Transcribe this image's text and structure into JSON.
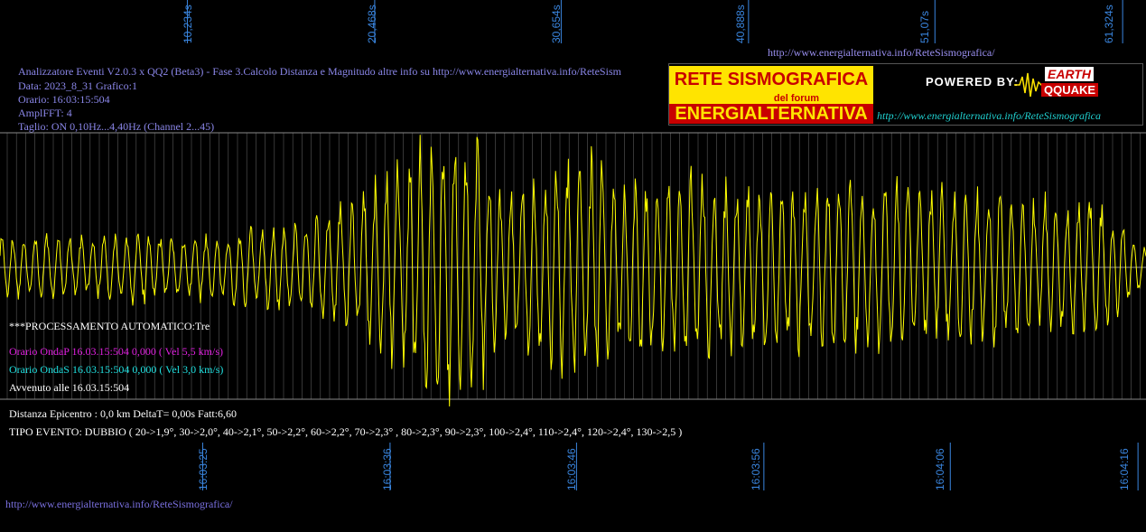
{
  "header": {
    "line1": "Analizzatore Eventi V2.0.3 x QQ2 (Beta3) - Fase 3.Calcolo Distanza e Magnitudo altre info su http://www.energialternativa.info/ReteSism",
    "line2": "Data: 2023_8_31 Grafico:1",
    "line3": "Orario: 16:03:15:504",
    "line4": "AmplFFT: 4",
    "line5": "Taglio: ON 0,10Hz...4,40Hz       (Channel 2...45)"
  },
  "url_top": "http://www.energialternativa.info/ReteSismografica/",
  "url_bottom": "http://www.energialternativa.info/ReteSismografica/",
  "logo": {
    "line1": "RETE SISMOGRAFICA",
    "line2": "del forum",
    "line3": "ENERGIALTERNATIVA",
    "powered": "POWERED BY:",
    "brand1": "EARTH",
    "brand2": "QQUAKE",
    "url": "http://www.energialternativa.info/ReteSismografica"
  },
  "processing": {
    "title": "***PROCESSAMENTO AUTOMATICO:Tre",
    "onda_p": "Orario OndaP 16.03.15:504  0,000 ( Vel 5,5 km/s)",
    "onda_s": "Orario OndaS 16.03.15:504  0,000 ( Vel 3,0 km/s)",
    "avvenuto": "Avvenuto alle 16.03.15:504",
    "distanza": "Distanza Epicentro : 0,0 km DeltaT= 0,00s  Fatt:6,60",
    "tipo": "TIPO EVENTO: DUBBIO ( 20->1,9°, 30->2,0°, 40->2,1°, 50->2,2°, 60->2,2°, 70->2,3° , 80->2,3°, 90->2,3°, 100->2,4°, 110->2,4°, 120->2,4°, 130->2,5 )"
  },
  "colors": {
    "background": "#000000",
    "trace": "#ffff00",
    "grid": "#5a5a5a",
    "ticks": "#3a86e0"
  },
  "chart_data": {
    "type": "line",
    "top_axis_ticks": [
      "10,234s",
      "20,468s",
      "30,654s",
      "40,888s",
      "51,07s",
      "61,324s"
    ],
    "bottom_axis_ticks": [
      "16:03:25",
      "16:03:36",
      "16:03:46",
      "16:03:56",
      "16:04:06",
      "16:04:16"
    ],
    "top_tick_seconds": [
      10.234,
      20.468,
      30.654,
      40.888,
      51.07,
      61.324
    ],
    "x_range_seconds": [
      0,
      62.6
    ],
    "y_range": [
      -1,
      1
    ],
    "signal": {
      "sample_step_s": 0.05,
      "cycle_period_s": 0.62,
      "envelope_s": [
        0,
        2,
        5,
        8,
        10,
        12,
        16,
        19,
        20,
        22,
        24,
        26,
        27,
        28,
        30,
        32,
        34,
        35,
        36,
        38,
        40,
        42,
        44,
        46,
        48,
        50,
        52,
        54,
        56,
        58,
        60,
        62.6
      ],
      "envelope_amp": [
        0.2,
        0.22,
        0.2,
        0.25,
        0.2,
        0.25,
        0.3,
        0.45,
        0.55,
        0.75,
        0.95,
        0.9,
        0.6,
        0.5,
        0.75,
        0.8,
        0.6,
        0.65,
        0.55,
        0.7,
        0.55,
        0.6,
        0.55,
        0.6,
        0.55,
        0.6,
        0.5,
        0.55,
        0.5,
        0.45,
        0.45,
        0.15
      ]
    },
    "grid": true
  }
}
